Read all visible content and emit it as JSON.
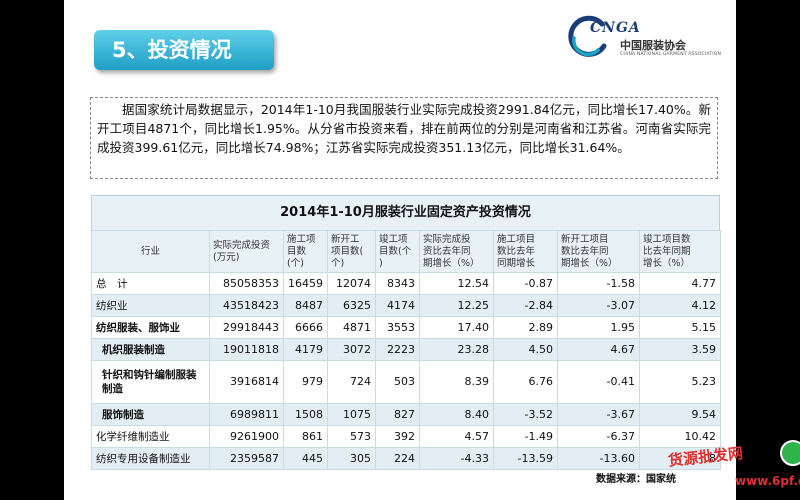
{
  "title": "5、投资情况",
  "logo": {
    "mark": "CNGA",
    "cn_name": "中国服装协会",
    "en_name": "CHINA NATIONAL GARMENT ASSOCIATION",
    "colors": {
      "blue": "#1a3d7a",
      "teal": "#19a3c5"
    }
  },
  "summary_text": "据国家统计局数据显示，2014年1-10月我国服装行业实际完成投资2991.84亿元，同比增长17.40%。新开工项目4871个，同比增长1.95%。从分省市投资来看，排在前两位的分别是河南省和江苏省。河南省实际完成投资399.61亿元，同比增长74.98%；江苏省实际完成投资351.13亿元，同比增长31.64%。",
  "table": {
    "title": "2014年1-10月服装行业固定资产投资情况",
    "headers": [
      "行业",
      "实际完成投资\n(万元)",
      "施工项\n目数\n(个)",
      "新开工\n项目数(\n个)",
      "竣工项\n目数(个\n)",
      "实际完成投\n资比去年同\n期增长（%）",
      "施工项目\n数比去年\n同期增长",
      "新开工项目\n数比去年同\n期增长（%）",
      "竣工项目数\n比去年同期\n增长（%）"
    ],
    "rows": [
      {
        "name": "总　计",
        "style": "plain",
        "values": [
          "85058353",
          "16459",
          "12074",
          "8343",
          "12.54",
          "-0.87",
          "-1.58",
          "4.77"
        ]
      },
      {
        "name": "纺织业",
        "style": "alt",
        "values": [
          "43518423",
          "8487",
          "6325",
          "4174",
          "12.25",
          "-2.84",
          "-3.07",
          "4.12"
        ]
      },
      {
        "name": "纺织服装、服饰业",
        "style": "bold",
        "values": [
          "29918443",
          "6666",
          "4871",
          "3553",
          "17.40",
          "2.89",
          "1.95",
          "5.15"
        ]
      },
      {
        "name": "机织服装制造",
        "style": "alt bold indent",
        "values": [
          "19011818",
          "4179",
          "3072",
          "2223",
          "23.28",
          "4.50",
          "4.67",
          "3.59"
        ]
      },
      {
        "name": "针织和钩针编制服装制造",
        "style": "bold indent tall",
        "values": [
          "3916814",
          "979",
          "724",
          "503",
          "8.39",
          "6.76",
          "-0.41",
          "5.23"
        ]
      },
      {
        "name": "服饰制造",
        "style": "alt bold indent",
        "values": [
          "6989811",
          "1508",
          "1075",
          "827",
          "8.40",
          "-3.52",
          "-3.67",
          "9.54"
        ]
      },
      {
        "name": "化学纤维制造业",
        "style": "plain",
        "values": [
          "9261900",
          "861",
          "573",
          "392",
          "4.57",
          "-1.49",
          "-6.37",
          "10.42"
        ]
      },
      {
        "name": "纺织专用设备制造业",
        "style": "alt",
        "values": [
          "2359587",
          "445",
          "305",
          "224",
          "-4.33",
          "-13.59",
          "-13.60",
          "8"
        ]
      }
    ]
  },
  "source": "数据来源：国家统",
  "watermark": {
    "text": "货源批发网",
    "url": "www.6pf.cn",
    "color": "#e03030"
  }
}
